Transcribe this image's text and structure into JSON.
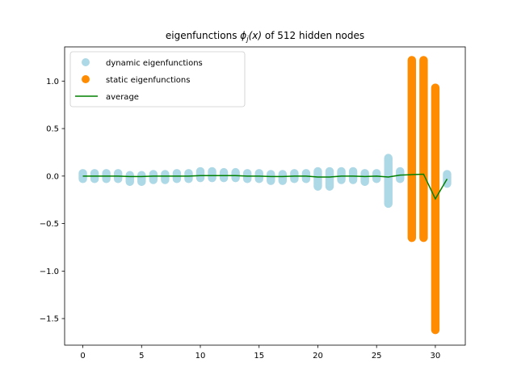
{
  "chart_data": {
    "type": "scatter",
    "title": "eigenfunctions ϕj(x) of 512 hidden nodes",
    "xlabel": "",
    "ylabel": "",
    "xlim": [
      -1.55,
      32.55
    ],
    "ylim": [
      -1.78,
      1.36
    ],
    "xticks": [
      0,
      5,
      10,
      15,
      20,
      25,
      30
    ],
    "xtick_labels": [
      "0",
      "5",
      "10",
      "15",
      "20",
      "25",
      "30"
    ],
    "yticks": [
      -1.5,
      -1.0,
      -0.5,
      0.0,
      0.5,
      1.0
    ],
    "ytick_labels": [
      "−1.5",
      "−1.0",
      "−0.5",
      "0.0",
      "0.5",
      "1.0"
    ],
    "grid": false,
    "legend_position": "top-left",
    "series": [
      {
        "name": "dynamic eigenfunctions",
        "kind": "scatter-columns",
        "color": "#add8e6",
        "columns": [
          {
            "x": 0,
            "ymin": -0.03,
            "ymax": 0.03
          },
          {
            "x": 1,
            "ymin": -0.03,
            "ymax": 0.03
          },
          {
            "x": 2,
            "ymin": -0.03,
            "ymax": 0.03
          },
          {
            "x": 3,
            "ymin": -0.03,
            "ymax": 0.03
          },
          {
            "x": 4,
            "ymin": -0.06,
            "ymax": 0.01
          },
          {
            "x": 5,
            "ymin": -0.06,
            "ymax": 0.01
          },
          {
            "x": 6,
            "ymin": -0.04,
            "ymax": 0.02
          },
          {
            "x": 7,
            "ymin": -0.04,
            "ymax": 0.02
          },
          {
            "x": 8,
            "ymin": -0.03,
            "ymax": 0.03
          },
          {
            "x": 9,
            "ymin": -0.03,
            "ymax": 0.03
          },
          {
            "x": 10,
            "ymin": -0.02,
            "ymax": 0.05
          },
          {
            "x": 11,
            "ymin": -0.02,
            "ymax": 0.05
          },
          {
            "x": 12,
            "ymin": -0.02,
            "ymax": 0.04
          },
          {
            "x": 13,
            "ymin": -0.02,
            "ymax": 0.04
          },
          {
            "x": 14,
            "ymin": -0.03,
            "ymax": 0.03
          },
          {
            "x": 15,
            "ymin": -0.03,
            "ymax": 0.03
          },
          {
            "x": 16,
            "ymin": -0.05,
            "ymax": 0.02
          },
          {
            "x": 17,
            "ymin": -0.05,
            "ymax": 0.02
          },
          {
            "x": 18,
            "ymin": -0.03,
            "ymax": 0.03
          },
          {
            "x": 19,
            "ymin": -0.03,
            "ymax": 0.03
          },
          {
            "x": 20,
            "ymin": -0.11,
            "ymax": 0.05
          },
          {
            "x": 21,
            "ymin": -0.11,
            "ymax": 0.05
          },
          {
            "x": 22,
            "ymin": -0.04,
            "ymax": 0.05
          },
          {
            "x": 23,
            "ymin": -0.04,
            "ymax": 0.05
          },
          {
            "x": 24,
            "ymin": -0.06,
            "ymax": 0.03
          },
          {
            "x": 25,
            "ymin": -0.03,
            "ymax": 0.03
          },
          {
            "x": 26,
            "ymin": -0.29,
            "ymax": 0.19
          },
          {
            "x": 27,
            "ymin": -0.03,
            "ymax": 0.05
          },
          {
            "x": 31,
            "ymin": -0.08,
            "ymax": 0.02
          }
        ]
      },
      {
        "name": "static eigenfunctions",
        "kind": "scatter-columns",
        "color": "#ff8c00",
        "columns": [
          {
            "x": 28,
            "ymin": -0.65,
            "ymax": 1.22
          },
          {
            "x": 29,
            "ymin": -0.65,
            "ymax": 1.22
          },
          {
            "x": 30,
            "ymin": -1.62,
            "ymax": 0.93
          }
        ]
      },
      {
        "name": "average",
        "kind": "line",
        "color": "#008000",
        "x": [
          0,
          1,
          2,
          3,
          4,
          5,
          6,
          7,
          8,
          9,
          10,
          11,
          12,
          13,
          14,
          15,
          16,
          17,
          18,
          19,
          20,
          21,
          22,
          23,
          24,
          25,
          26,
          27,
          28,
          29,
          30,
          31
        ],
        "y": [
          0,
          0,
          0,
          0,
          -0.005,
          -0.005,
          0,
          0,
          0,
          0,
          0.005,
          0.005,
          0.005,
          0.005,
          0,
          0,
          -0.005,
          -0.005,
          0,
          0,
          -0.01,
          -0.01,
          0,
          0,
          -0.005,
          0,
          -0.01,
          0.01,
          0.015,
          0.02,
          -0.24,
          -0.03
        ]
      }
    ]
  }
}
